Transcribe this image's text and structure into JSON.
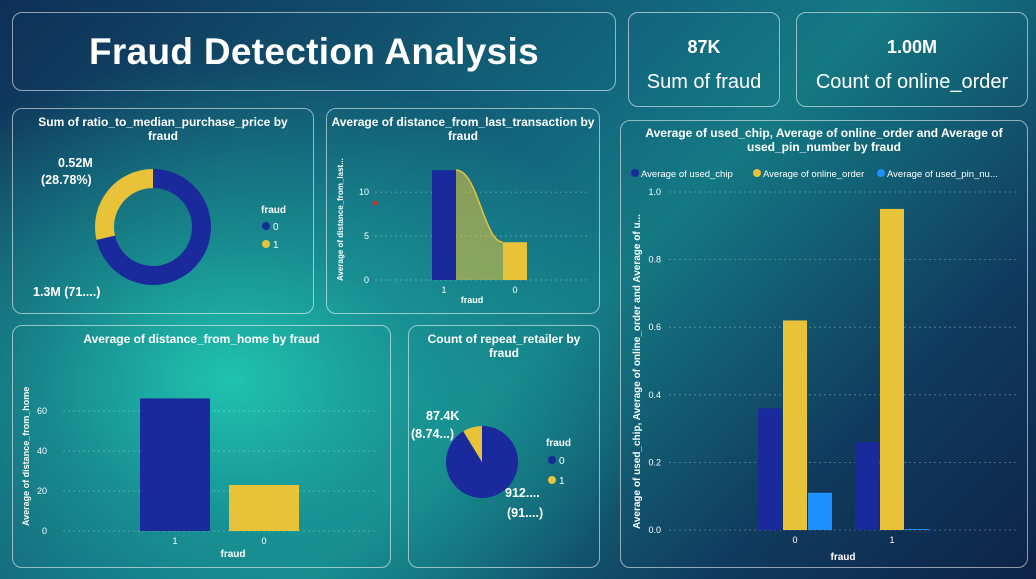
{
  "header": {
    "title": "Fraud Detection Analysis"
  },
  "kpis": [
    {
      "value": "87K",
      "label": "Sum of fraud"
    },
    {
      "value": "1.00M",
      "label": "Count of online_order"
    }
  ],
  "colors": {
    "fraud0": "#1a2a9c",
    "fraud1": "#e8c33a",
    "pin": "#1e90ff",
    "text": "#ffffff"
  },
  "chart_data": [
    {
      "id": "ratio_donut",
      "type": "pie",
      "title": "Sum of ratio_to_median_purchase_price by fraud",
      "legend_title": "fraud",
      "categories": [
        "0",
        "1"
      ],
      "values": [
        1.3,
        0.52
      ],
      "units": "M",
      "data_labels": [
        {
          "value": "1.3M",
          "pct": "(71....)",
          "text": "1.3M (71....)"
        },
        {
          "value": "0.52M",
          "pct": "(28.78%)"
        }
      ],
      "donut": true,
      "legend_position": "right"
    },
    {
      "id": "distance_last_tx",
      "type": "area",
      "title": "Average of distance_from_last_transaction by fraud",
      "xlabel": "fraud",
      "ylabel": "Average of distance_from_last...",
      "categories": [
        "1",
        "0"
      ],
      "values": [
        12.5,
        4.3
      ],
      "yticks": [
        0,
        5,
        10
      ],
      "ylim": [
        0,
        14
      ]
    },
    {
      "id": "distance_home",
      "type": "bar",
      "title": "Average of distance_from_home by fraud",
      "xlabel": "fraud",
      "ylabel": "Average of distance_from_home",
      "categories": [
        "1",
        "0"
      ],
      "values": [
        66.3,
        23.0
      ],
      "yticks": [
        0,
        20,
        40,
        60
      ],
      "ylim": [
        0,
        70
      ]
    },
    {
      "id": "repeat_retailer",
      "type": "pie",
      "title": "Count of repeat_retailer by fraud",
      "legend_title": "fraud",
      "categories": [
        "0",
        "1"
      ],
      "values": [
        912.6,
        87.4
      ],
      "units": "K",
      "data_labels": [
        {
          "value": "912....",
          "pct": "(91....)"
        },
        {
          "value": "87.4K",
          "pct": "(8.74...)"
        }
      ],
      "legend_position": "right"
    },
    {
      "id": "chip_online_pin",
      "type": "bar",
      "title": "Average of used_chip, Average of online_order and Average of used_pin_number by fraud",
      "xlabel": "fraud",
      "ylabel": "Average of used_chip, Average of online_order and Average of u...",
      "categories": [
        "0",
        "1"
      ],
      "series": [
        {
          "name": "Average of used_chip",
          "legend": "Average of used_chip",
          "values": [
            0.36,
            0.26
          ]
        },
        {
          "name": "Average of online_order",
          "legend": "Average of online_order",
          "values": [
            0.62,
            0.95
          ]
        },
        {
          "name": "Average of used_pin_number",
          "legend": "Average of used_pin_nu...",
          "values": [
            0.11,
            0.003
          ]
        }
      ],
      "yticks": [
        "0.0",
        "0.2",
        "0.4",
        "0.6",
        "0.8",
        "1.0"
      ],
      "ylim": [
        0,
        1.0
      ],
      "legend_position": "top-left"
    }
  ]
}
